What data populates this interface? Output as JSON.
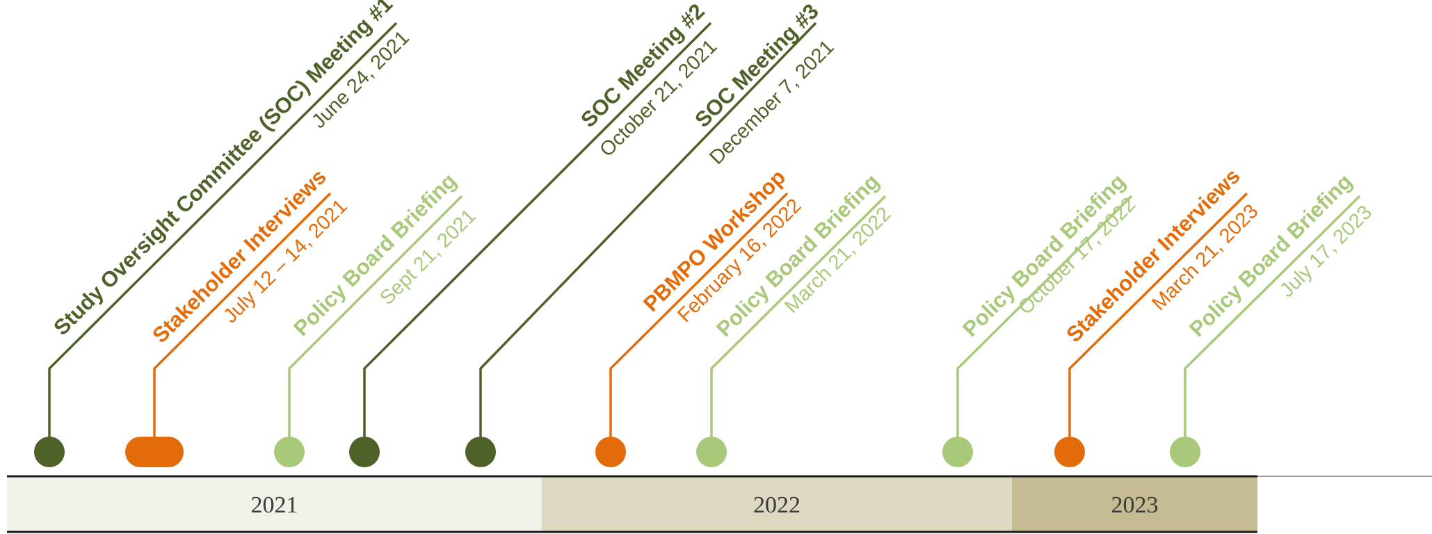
{
  "colors": {
    "soc": "#4e6128",
    "stakeholder": "#e36c0a",
    "policy": "#a9c97a",
    "band_2021": "#f1f0e9",
    "band_2022": "#ddd8c0",
    "band_2023": "#c4bb92",
    "year_text": "#3a3a3a"
  },
  "events": [
    {
      "kind": "soc",
      "title": "Study Oversight Committee (SOC) Meeting #1",
      "date": "June 24, 2021",
      "marker": "dot"
    },
    {
      "kind": "stakeholder",
      "title": "Stakeholder Interviews",
      "date": "July 12 – 14, 2021",
      "marker": "pill"
    },
    {
      "kind": "policy",
      "title": "Policy Board Briefing",
      "date": "Sept 21, 2021",
      "marker": "dot"
    },
    {
      "kind": "soc",
      "title": "SOC Meeting #2",
      "date": "October 21, 2021",
      "marker": "dot"
    },
    {
      "kind": "soc",
      "title": "SOC Meeting #3",
      "date": "December 7, 2021",
      "marker": "dot"
    },
    {
      "kind": "stakeholder",
      "title": "PBMPO Workshop",
      "date": "February 16, 2022",
      "marker": "dot"
    },
    {
      "kind": "policy",
      "title": "Policy Board Briefing",
      "date": "March 21, 2022",
      "marker": "dot"
    },
    {
      "kind": "policy",
      "title": "Policy Board Briefing",
      "date": "October 17, 2022",
      "marker": "dot"
    },
    {
      "kind": "stakeholder",
      "title": "Stakeholder Interviews",
      "date": "March 21, 2023",
      "marker": "dot"
    },
    {
      "kind": "policy",
      "title": "Policy Board Briefing",
      "date": "July 17, 2023",
      "marker": "dot"
    }
  ],
  "years": [
    {
      "label": "2021"
    },
    {
      "label": "2022"
    },
    {
      "label": "2023"
    }
  ]
}
